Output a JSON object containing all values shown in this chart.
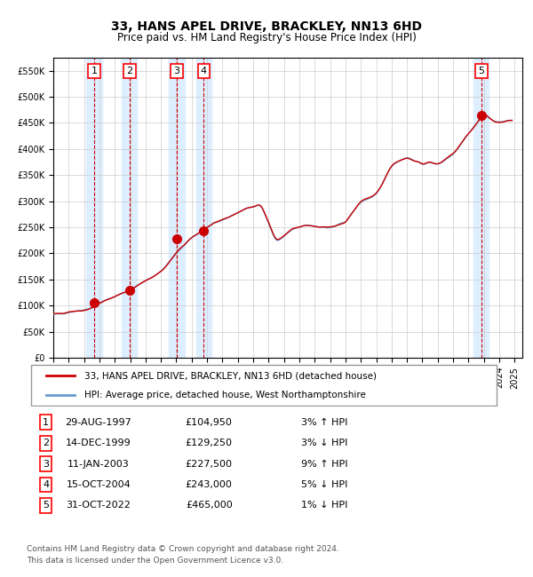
{
  "title": "33, HANS APEL DRIVE, BRACKLEY, NN13 6HD",
  "subtitle": "Price paid vs. HM Land Registry's House Price Index (HPI)",
  "legend_line1": "33, HANS APEL DRIVE, BRACKLEY, NN13 6HD (detached house)",
  "legend_line2": "HPI: Average price, detached house, West Northamptonshire",
  "footer1": "Contains HM Land Registry data © Crown copyright and database right 2024.",
  "footer2": "This data is licensed under the Open Government Licence v3.0.",
  "transactions": [
    {
      "num": 1,
      "date": "29-AUG-1997",
      "price": 104950,
      "pct": "3%",
      "dir": "↑",
      "year": 1997.66
    },
    {
      "num": 2,
      "date": "14-DEC-1999",
      "price": 129250,
      "pct": "3%",
      "dir": "↓",
      "year": 1999.95
    },
    {
      "num": 3,
      "date": "11-JAN-2003",
      "price": 227500,
      "pct": "9%",
      "dir": "↑",
      "year": 2003.03
    },
    {
      "num": 4,
      "date": "15-OCT-2004",
      "price": 243000,
      "pct": "5%",
      "dir": "↓",
      "year": 2004.79
    },
    {
      "num": 5,
      "date": "31-OCT-2022",
      "price": 465000,
      "pct": "1%",
      "dir": "↓",
      "year": 2022.83
    }
  ],
  "hpi_color": "#6699cc",
  "price_color": "#cc0000",
  "dot_color": "#cc0000",
  "vline_color": "#cc0000",
  "shade_color": "#ddeeff",
  "grid_color": "#cccccc",
  "bg_color": "#ffffff",
  "ylim": [
    0,
    575000
  ],
  "xlim_start": 1995.0,
  "xlim_end": 2025.5,
  "yticks": [
    0,
    50000,
    100000,
    150000,
    200000,
    250000,
    300000,
    350000,
    400000,
    450000,
    500000,
    550000
  ],
  "xticks": [
    1995,
    1996,
    1997,
    1998,
    1999,
    2000,
    2001,
    2002,
    2003,
    2004,
    2005,
    2006,
    2007,
    2008,
    2009,
    2010,
    2011,
    2012,
    2013,
    2014,
    2015,
    2016,
    2017,
    2018,
    2019,
    2020,
    2021,
    2022,
    2023,
    2024,
    2025
  ]
}
